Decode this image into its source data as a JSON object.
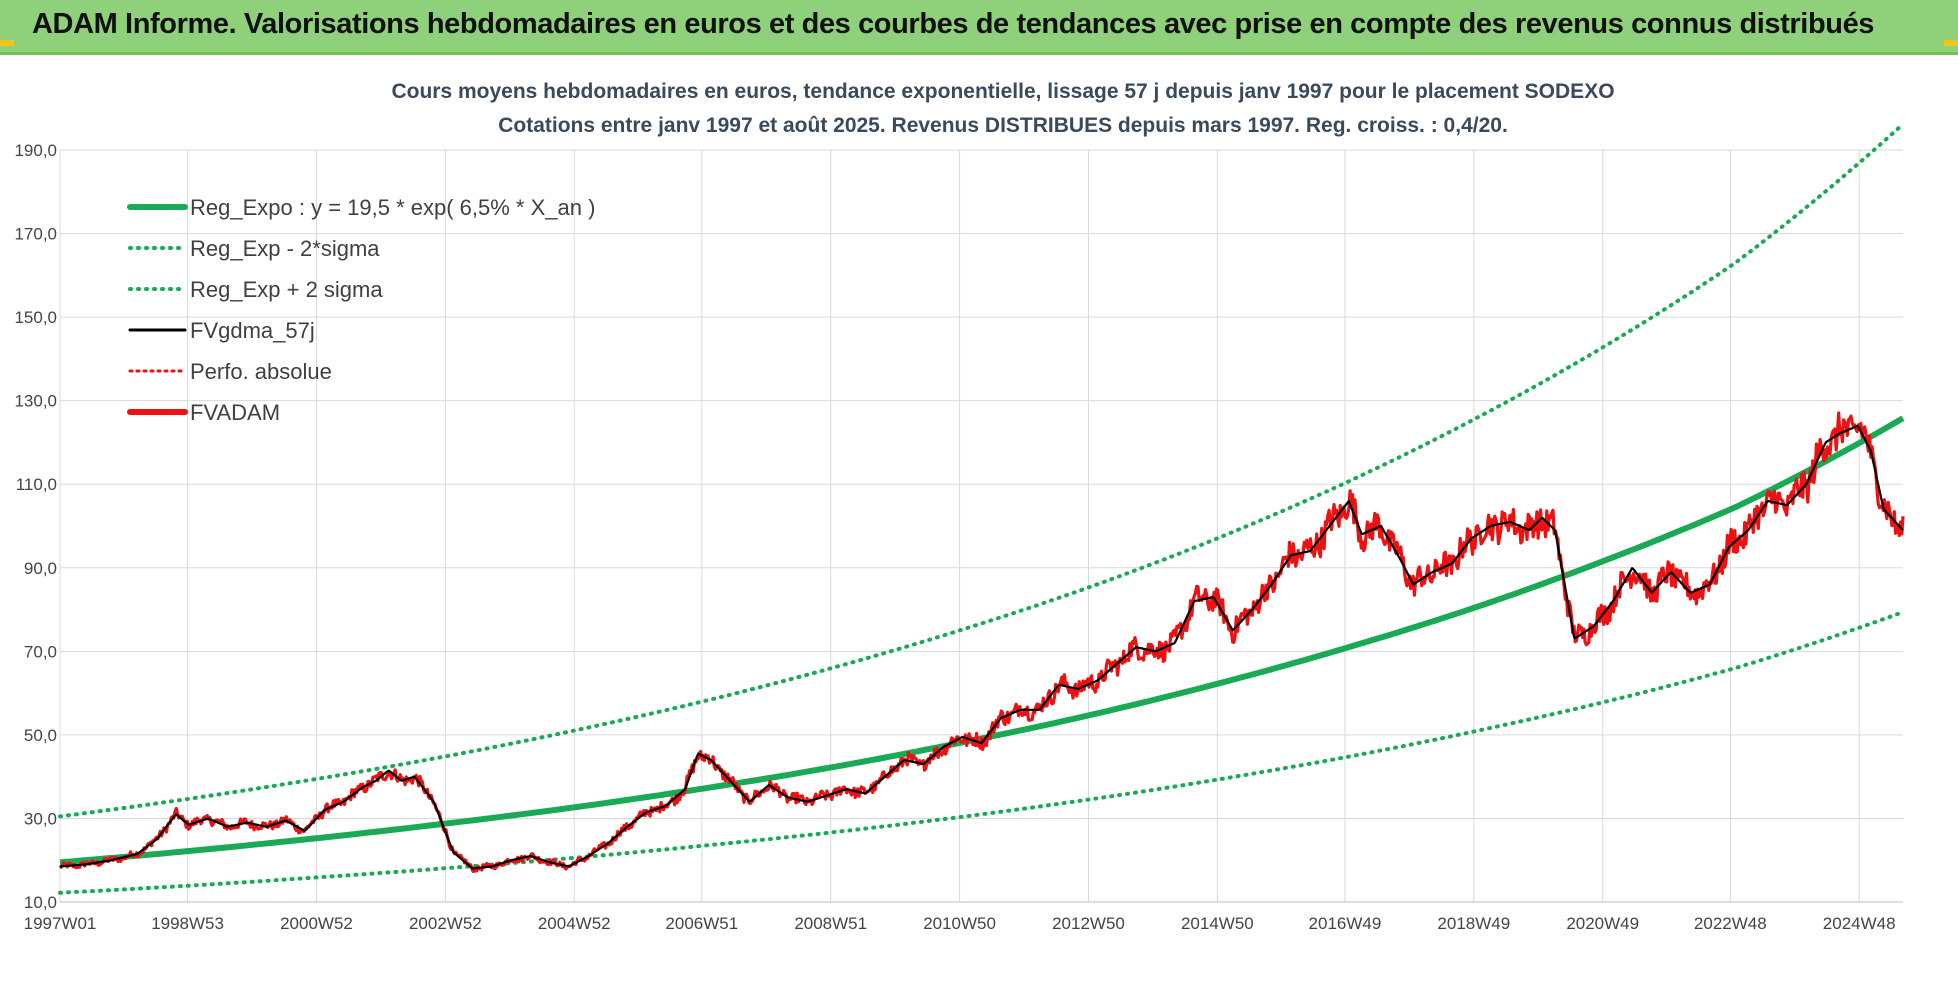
{
  "banner": {
    "title": "ADAM Informe. Valorisations hebdomadaires en euros et des courbes de tendances avec prise en compte des revenus connus distribués"
  },
  "colors": {
    "banner_bg": "#8fd07a",
    "green": "#1aaa55",
    "red": "#ee1111",
    "black": "#000000",
    "grid": "#d9d9d9",
    "axis_text": "#444444",
    "title_text": "#3a4a5c"
  },
  "chart_data": {
    "type": "line",
    "title_line1": "Cours moyens hebdomadaires en euros, tendance exponentielle, lissage 57 j depuis janv 1997 pour le placement SODEXO",
    "title_line2": "Cotations entre janv 1997 et août 2025.  Revenus DISTRIBUES depuis mars 1997. Reg. croiss. : 0,4/20.",
    "xlim": [
      1997.0,
      2025.6
    ],
    "ylim": [
      10,
      190
    ],
    "yticks": [
      10,
      30,
      50,
      70,
      90,
      110,
      130,
      150,
      170,
      190
    ],
    "ytick_labels": [
      "10,0",
      "30,0",
      "50,0",
      "70,0",
      "90,0",
      "110,0",
      "130,0",
      "150,0",
      "170,0",
      "190,0"
    ],
    "xticks": [
      1997.0,
      1998.98,
      2000.98,
      2002.98,
      2004.98,
      2006.96,
      2008.96,
      2010.96,
      2012.96,
      2014.96,
      2016.94,
      2018.94,
      2020.94,
      2022.92,
      2024.92
    ],
    "xtick_labels": [
      "1997W01",
      "1998W53",
      "2000W52",
      "2002W52",
      "2004W52",
      "2006W51",
      "2008W51",
      "2010W50",
      "2012W50",
      "2014W50",
      "2016W49",
      "2018W49",
      "2020W49",
      "2022W48",
      "2024W48"
    ],
    "grid": true,
    "legend_position": "top-left",
    "legend": [
      {
        "label": "Reg_Expo : y = 19,5 * exp( 6,5% *  X_an )",
        "color": "#1aaa55",
        "style": "solid-thick"
      },
      {
        "label": "Reg_Exp - 2*sigma",
        "color": "#1aaa55",
        "style": "dotted"
      },
      {
        "label": "Reg_Exp + 2 sigma",
        "color": "#1aaa55",
        "style": "dotted"
      },
      {
        "label": "FVgdma_57j",
        "color": "#000000",
        "style": "solid"
      },
      {
        "label": "Perfo. absolue",
        "color": "#ee1111",
        "style": "dotted"
      },
      {
        "label": "FVADAM",
        "color": "#ee1111",
        "style": "solid-thick"
      }
    ],
    "trend": {
      "x": [
        1997.0,
        1999.0,
        2001.0,
        2003.0,
        2005.0,
        2007.0,
        2009.0,
        2011.0,
        2013.0,
        2015.0,
        2017.0,
        2019.0,
        2021.0,
        2023.0,
        2025.6
      ],
      "regression": [
        19.5,
        22.2,
        25.3,
        28.8,
        32.7,
        37.2,
        42.3,
        48.2,
        54.8,
        62.4,
        71.0,
        80.7,
        91.9,
        104.5,
        125.8
      ],
      "minus_2sigma": [
        12.2,
        13.9,
        15.9,
        18.1,
        20.6,
        23.5,
        26.7,
        30.4,
        34.6,
        39.4,
        44.8,
        51.0,
        58.0,
        66.0,
        79.4
      ],
      "plus_2sigma": [
        30.5,
        34.7,
        39.5,
        44.9,
        51.1,
        58.1,
        66.1,
        75.2,
        85.5,
        97.3,
        110.7,
        126.0,
        143.3,
        163.0,
        196.2
      ]
    },
    "price": {
      "x": [
        1997.0,
        1997.4,
        1997.8,
        1998.2,
        1998.5,
        1998.8,
        1999.0,
        1999.3,
        1999.6,
        1999.9,
        2000.2,
        2000.5,
        2000.8,
        2001.1,
        2001.4,
        2001.7,
        2001.9,
        2002.1,
        2002.3,
        2002.5,
        2002.8,
        2003.1,
        2003.4,
        2003.7,
        2004.0,
        2004.3,
        2004.6,
        2004.9,
        2005.2,
        2005.5,
        2005.8,
        2006.1,
        2006.4,
        2006.7,
        2006.9,
        2007.1,
        2007.4,
        2007.7,
        2008.0,
        2008.3,
        2008.6,
        2008.9,
        2009.2,
        2009.5,
        2009.8,
        2010.1,
        2010.4,
        2010.7,
        2011.0,
        2011.3,
        2011.6,
        2011.9,
        2012.2,
        2012.5,
        2012.8,
        2013.1,
        2013.4,
        2013.7,
        2014.0,
        2014.3,
        2014.6,
        2014.9,
        2015.2,
        2015.5,
        2015.8,
        2016.1,
        2016.4,
        2016.7,
        2017.0,
        2017.2,
        2017.5,
        2017.8,
        2018.0,
        2018.3,
        2018.6,
        2018.9,
        2019.2,
        2019.5,
        2019.8,
        2020.0,
        2020.2,
        2020.5,
        2020.8,
        2021.1,
        2021.4,
        2021.7,
        2022.0,
        2022.3,
        2022.6,
        2022.9,
        2023.2,
        2023.5,
        2023.8,
        2024.1,
        2024.4,
        2024.6,
        2024.9,
        2025.1,
        2025.3,
        2025.6
      ],
      "values": [
        18.5,
        19.0,
        20.0,
        21.5,
        25.0,
        31.0,
        28.5,
        30.0,
        28.0,
        29.0,
        28.0,
        29.5,
        27.0,
        32.0,
        34.0,
        37.5,
        39.0,
        41.5,
        39.0,
        40.0,
        34.0,
        22.0,
        18.0,
        18.5,
        20.0,
        21.0,
        19.5,
        18.5,
        21.0,
        24.0,
        28.0,
        31.5,
        33.0,
        37.0,
        45.5,
        44.0,
        39.0,
        34.0,
        38.0,
        35.0,
        34.0,
        35.5,
        37.0,
        36.0,
        40.0,
        44.0,
        43.0,
        47.0,
        49.5,
        48.0,
        54.0,
        56.0,
        56.0,
        62.0,
        61.0,
        63.0,
        67.0,
        71.0,
        70.0,
        72.0,
        82.0,
        83.0,
        75.0,
        80.0,
        86.0,
        93.0,
        94.0,
        100.0,
        106.0,
        98.0,
        100.0,
        92.0,
        86.0,
        89.0,
        91.0,
        97.0,
        100.0,
        101.0,
        99.0,
        102.0,
        99.0,
        73.0,
        76.0,
        82.0,
        90.0,
        84.0,
        89.0,
        84.0,
        86.0,
        95.0,
        99.0,
        106.0,
        105.0,
        110.0,
        120.0,
        122.0,
        124.0,
        118.0,
        104.0,
        99.0
      ]
    }
  }
}
